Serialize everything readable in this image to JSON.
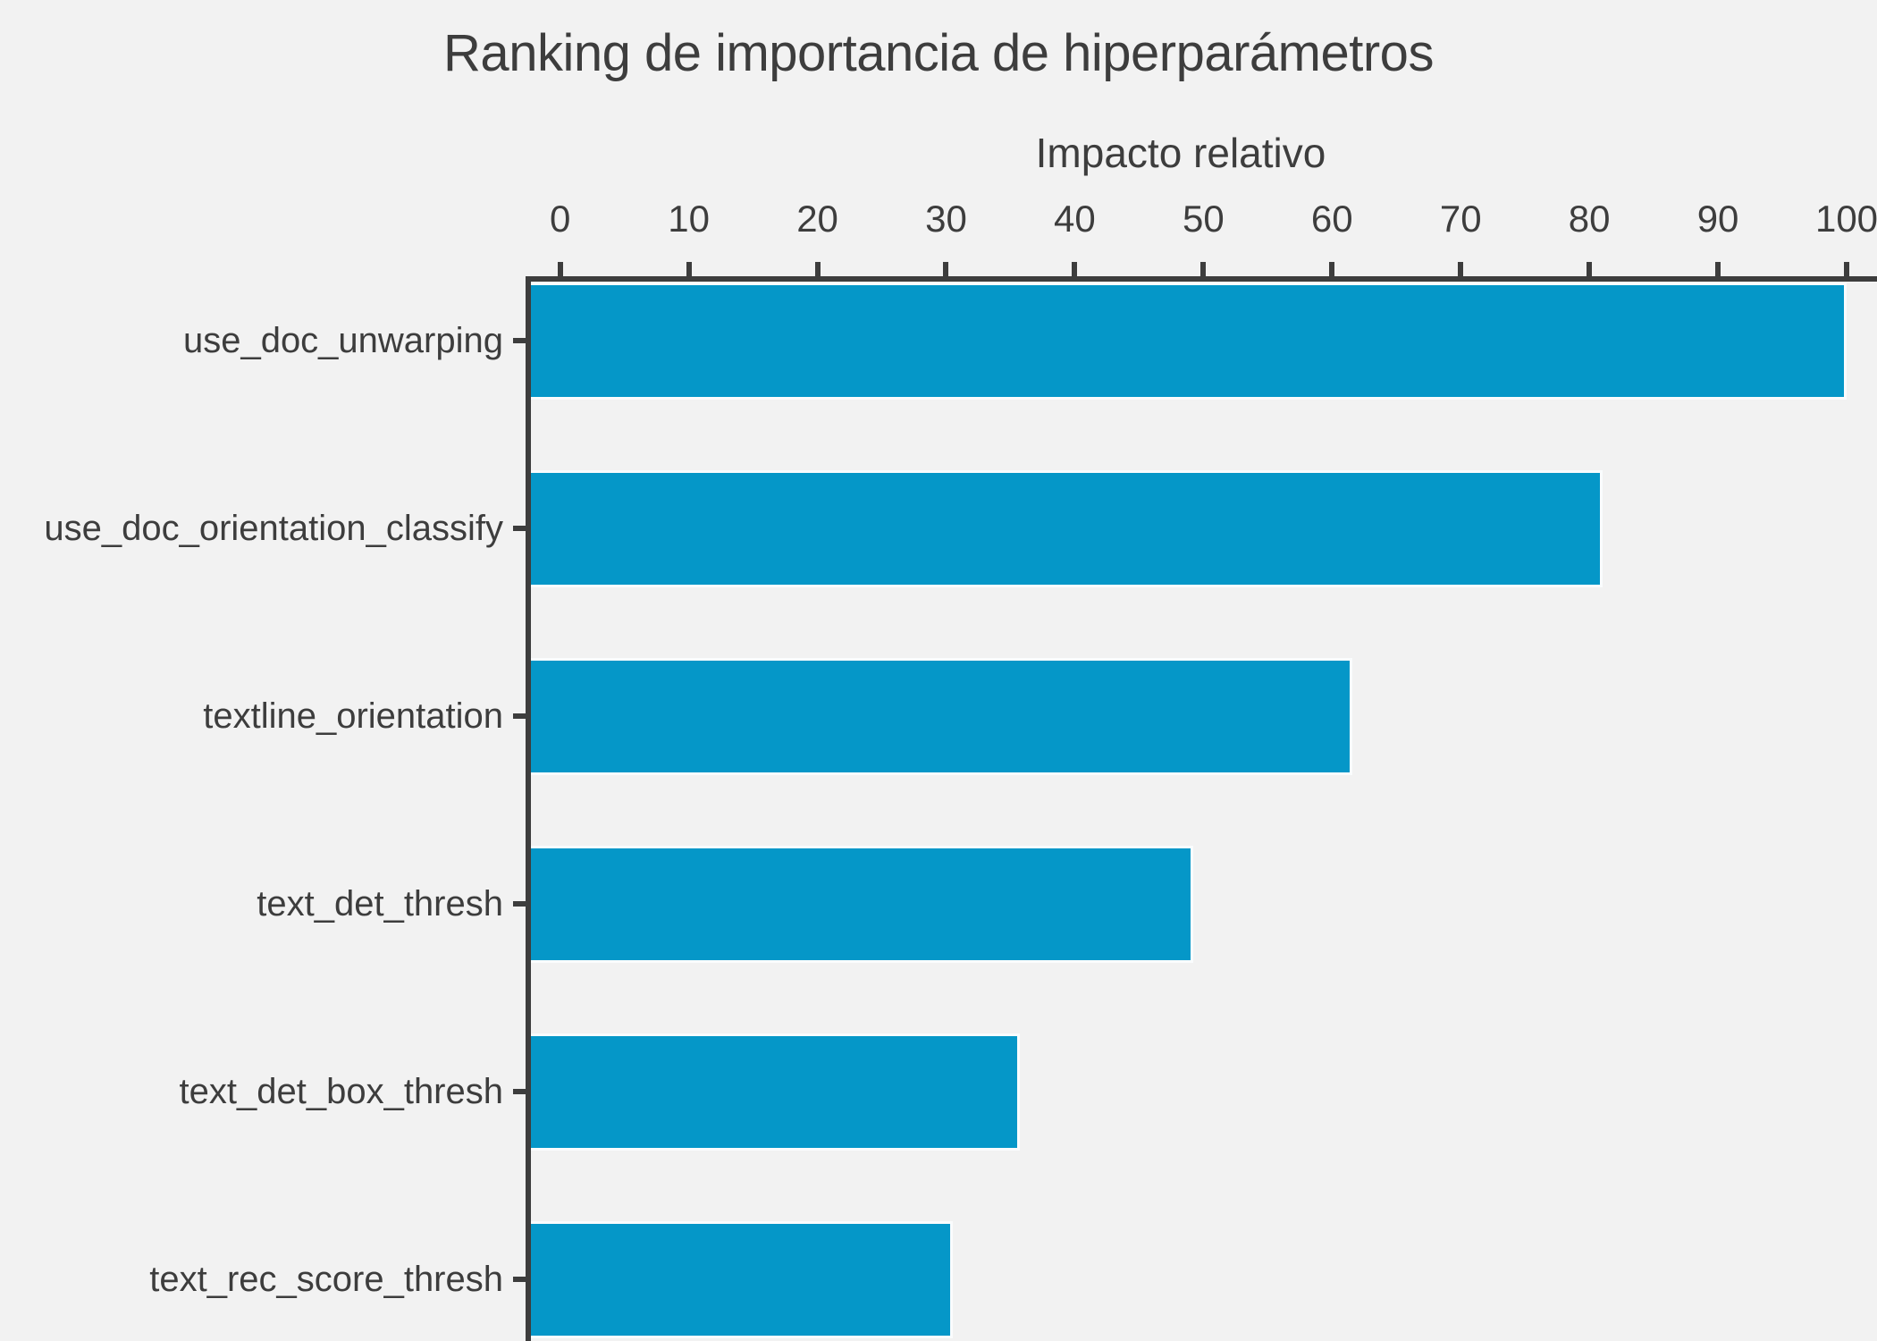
{
  "chart_data": {
    "type": "bar",
    "orientation": "horizontal",
    "title": "Ranking de importancia de hiperparámetros",
    "xlabel": "Impacto relativo",
    "categories": [
      "use_doc_unwarping",
      "use_doc_orientation_classify",
      "textline_orientation",
      "text_det_thresh",
      "text_det_box_thresh",
      "text_rec_score_thresh"
    ],
    "values": [
      100,
      81,
      61.6,
      49.2,
      35.7,
      30.5
    ],
    "xticks": [
      0,
      10,
      20,
      30,
      40,
      50,
      60,
      70,
      80,
      90,
      100
    ],
    "xlim": [
      0,
      100
    ],
    "xaxis_position": "top",
    "grid": false,
    "legend": null,
    "colors": {
      "background": "#f2f2f2",
      "bar": "#0597c8",
      "bar_edge": "#fafcfd",
      "axis": "#3d3d3d",
      "text": "#3d3d3d"
    }
  }
}
